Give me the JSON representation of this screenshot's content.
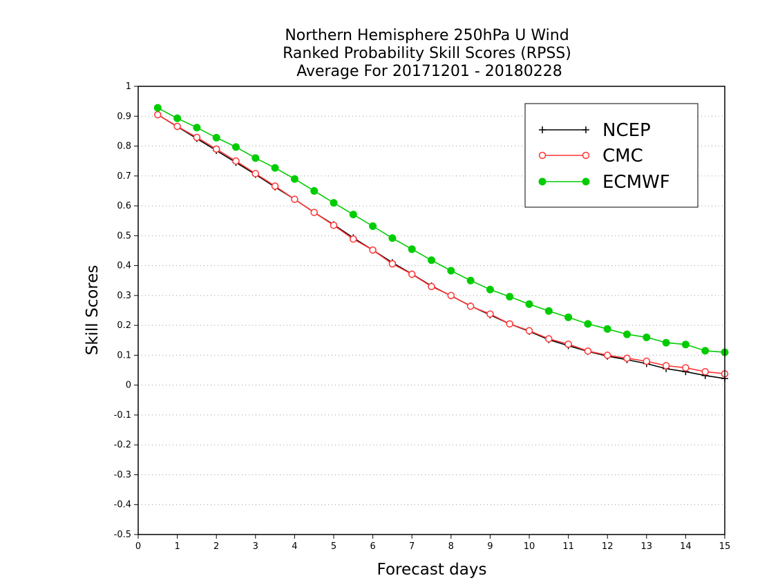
{
  "chart_data": {
    "type": "line",
    "title_lines": [
      "Northern Hemisphere 250hPa U Wind",
      "Ranked Probability Skill Scores (RPSS)",
      " Average For 20171201 - 20180228"
    ],
    "xlabel": "Forecast days",
    "ylabel": "Skill Scores",
    "xlim": [
      0,
      15
    ],
    "ylim": [
      -0.5,
      1
    ],
    "x_ticks": [
      "0",
      "1",
      "2",
      "3",
      "4",
      "5",
      "6",
      "7",
      "8",
      "9",
      "10",
      "11",
      "12",
      "13",
      "14",
      "15"
    ],
    "y_ticks": [
      "1",
      "0.9",
      "0.8",
      "0.7",
      "0.6",
      "0.5",
      "0.4",
      "0.3",
      "0.2",
      "0.1",
      "0",
      "-0.1",
      "-0.2",
      "-0.3",
      "-0.4",
      "-0.5"
    ],
    "grid": "horizontal dotted",
    "legend_position": "top-right",
    "x": [
      0.5,
      1,
      1.5,
      2,
      2.5,
      3,
      3.5,
      4,
      4.5,
      5,
      5.5,
      6,
      6.5,
      7,
      7.5,
      8,
      8.5,
      9,
      9.5,
      10,
      10.5,
      11,
      11.5,
      12,
      12.5,
      13,
      13.5,
      14,
      14.5,
      15
    ],
    "series": [
      {
        "name": "NCEP",
        "color": "#000000",
        "marker": "plus",
        "values": [
          0.905,
          0.865,
          0.825,
          0.785,
          0.745,
          0.705,
          0.663,
          0.622,
          0.578,
          0.537,
          0.493,
          0.452,
          0.41,
          0.372,
          0.332,
          0.299,
          0.265,
          0.235,
          0.205,
          0.18,
          0.152,
          0.132,
          0.113,
          0.097,
          0.085,
          0.072,
          0.055,
          0.045,
          0.032,
          0.022
        ]
      },
      {
        "name": "CMC",
        "color": "#ff3333",
        "marker": "open-circle",
        "values": [
          0.905,
          0.866,
          0.829,
          0.79,
          0.75,
          0.708,
          0.666,
          0.622,
          0.578,
          0.535,
          0.489,
          0.452,
          0.406,
          0.371,
          0.33,
          0.3,
          0.264,
          0.238,
          0.205,
          0.182,
          0.155,
          0.137,
          0.114,
          0.1,
          0.09,
          0.08,
          0.065,
          0.058,
          0.045,
          0.038
        ]
      },
      {
        "name": "ECMWF",
        "color": "#00cc00",
        "marker": "filled-circle",
        "values": [
          0.928,
          0.893,
          0.862,
          0.828,
          0.797,
          0.76,
          0.727,
          0.69,
          0.65,
          0.61,
          0.571,
          0.532,
          0.492,
          0.455,
          0.418,
          0.383,
          0.35,
          0.32,
          0.296,
          0.271,
          0.248,
          0.227,
          0.205,
          0.188,
          0.17,
          0.16,
          0.142,
          0.136,
          0.115,
          0.11
        ]
      }
    ]
  }
}
